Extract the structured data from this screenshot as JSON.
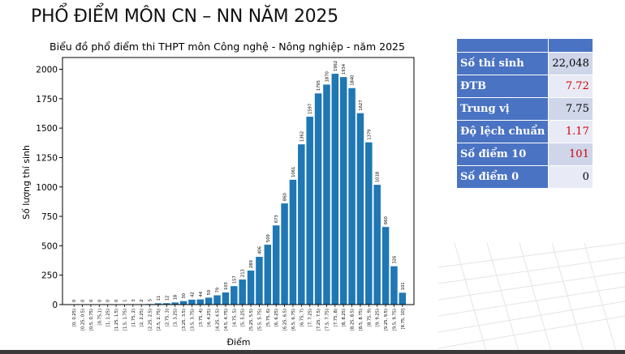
{
  "slide": {
    "title": "PHỔ ĐIỂM MÔN CN – NN NĂM 2025"
  },
  "stats": {
    "rows": [
      {
        "label": "Số thí sinh",
        "value": "22,048",
        "color": "#000000"
      },
      {
        "label": "ĐTB",
        "value": "7.72",
        "color": "#d40000"
      },
      {
        "label": "Trung vị",
        "value": "7.75",
        "color": "#000000"
      },
      {
        "label": "Độ lệch chuẩn",
        "value": "1.17",
        "color": "#d40000"
      },
      {
        "label": "Số điểm 10",
        "value": "101",
        "color": "#d40000"
      },
      {
        "label": "Số điểm 0",
        "value": "0",
        "color": "#000000"
      }
    ]
  },
  "chart_data": {
    "type": "bar",
    "title": "Biểu đồ phổ điểm thi THPT môn Công nghệ - Nông nghiệp - năm 2025",
    "xlabel": "Điểm",
    "ylabel": "Số lượng thí sinh",
    "ylim": [
      0,
      2100
    ],
    "yticks": [
      0,
      250,
      500,
      750,
      1000,
      1250,
      1500,
      1750,
      2000
    ],
    "grid": false,
    "bar_color": "#1f77b4",
    "categories": [
      "[0, 0.25)",
      "[0.25, 0.5)",
      "[0.5, 0.75)",
      "[0.75,1)",
      "[1, 1.25)",
      "[1.25, 1.5)",
      "[1.5, 1.75)",
      "[1.75, 2)",
      "[2, 2.25)",
      "[2.25, 2.5)",
      "[2.5, 2.75)",
      "[2.75, 3)",
      "[3, 3.25)",
      "[3.25, 3.5)",
      "[3.5, 3.75)",
      "[3.75, 4)",
      "[4, 4.25)",
      "[4.25, 4.5)",
      "[4.5, 4.75)",
      "[4.75, 5)",
      "[5, 5.25)",
      "[5.25, 5.5)",
      "[5.5, 5.75)",
      "[5.75, 6)",
      "[6, 6.25)",
      "[6.25, 6.5)",
      "[6.5, 6.75)",
      "[6.75, 7)",
      "[7, 7.25)",
      "[7.25, 7.5)",
      "[7.5, 7.75)",
      "[7.75, 8)",
      "[8, 8.25)",
      "[8.25, 8.5)",
      "[8.5, 8.75)",
      "[8.75, 9)",
      "[9, 9.25)",
      "[9.25, 9.5)",
      "[9.5, 9.75)",
      "[9.75, 10]"
    ],
    "values": [
      0,
      0,
      0,
      0,
      0,
      0,
      1,
      3,
      2,
      5,
      11,
      12,
      18,
      30,
      42,
      44,
      59,
      79,
      103,
      157,
      213,
      289,
      406,
      509,
      673,
      860,
      1061,
      1362,
      1597,
      1795,
      1870,
      1962,
      1934,
      1840,
      1627,
      1379,
      1018,
      660,
      326,
      101
    ]
  }
}
